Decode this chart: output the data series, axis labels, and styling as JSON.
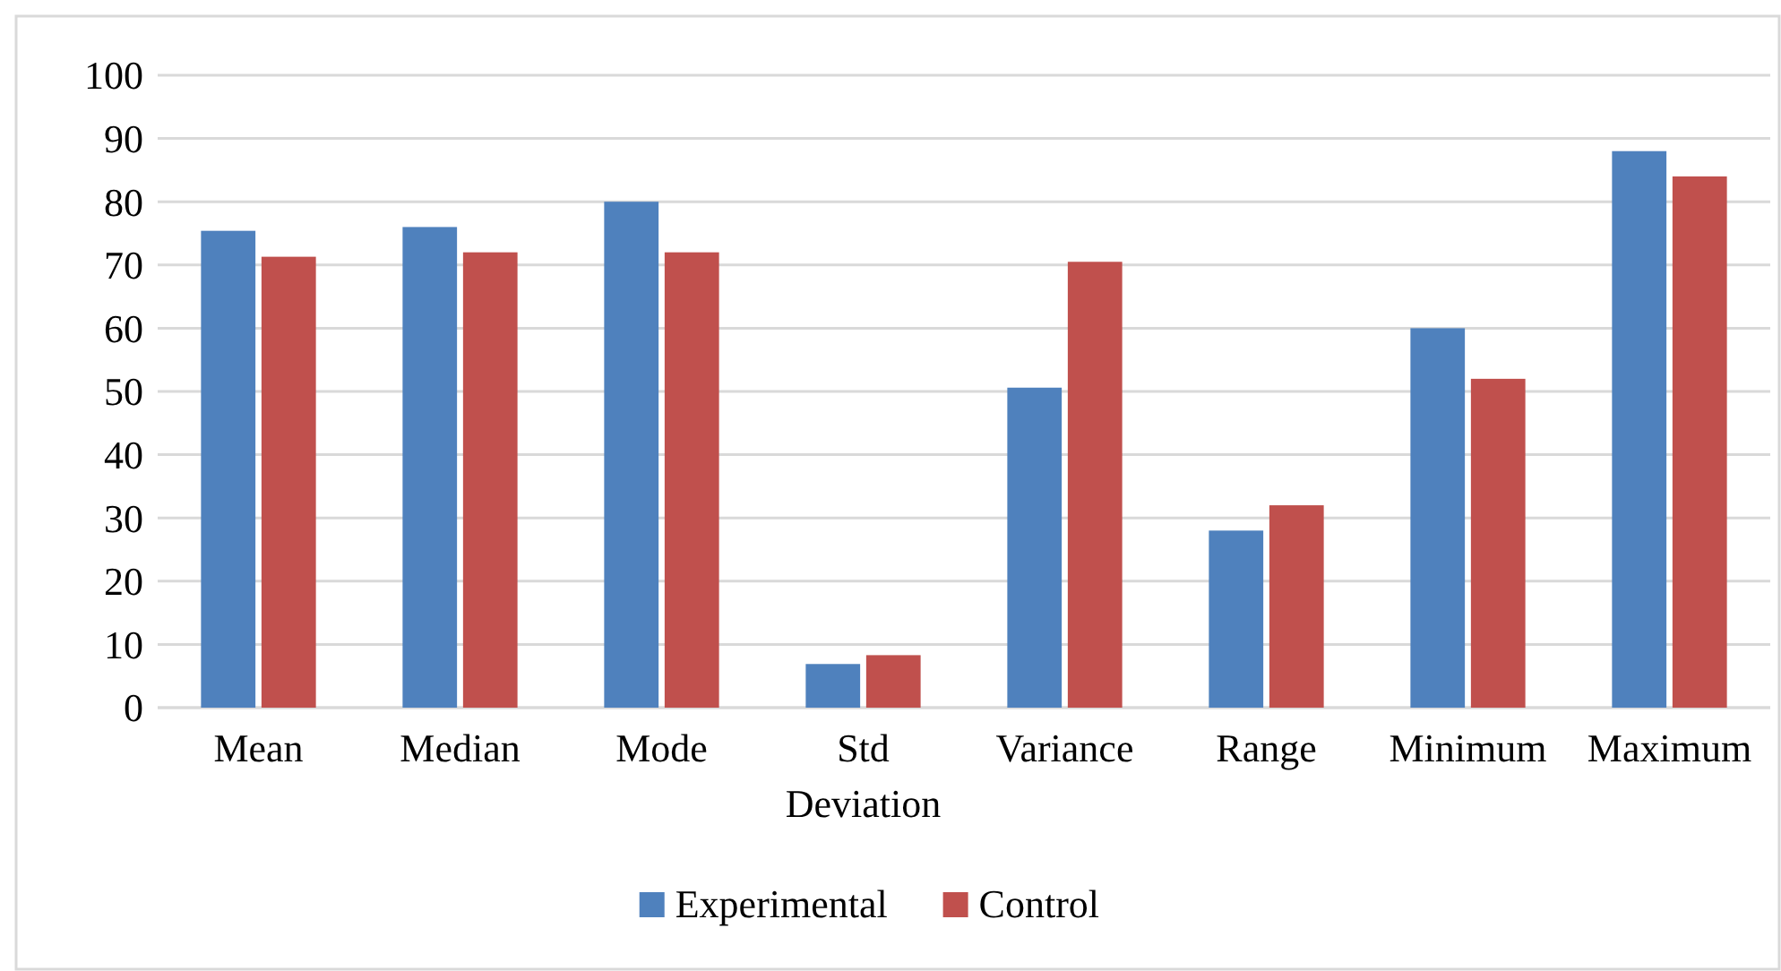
{
  "chart_data": {
    "type": "bar",
    "categories": [
      "Mean",
      "Median",
      "Mode",
      "Std Deviation",
      "Variance",
      "Range",
      "Minimum",
      "Maximum"
    ],
    "series": [
      {
        "name": "Experimental",
        "color": "#4f81bd",
        "values": [
          75.4,
          76,
          80,
          6.9,
          50.6,
          28,
          60,
          88
        ]
      },
      {
        "name": "Control",
        "color": "#c0504d",
        "values": [
          71.3,
          72,
          72,
          8.3,
          70.5,
          32,
          52,
          84
        ]
      }
    ],
    "ylim": [
      0,
      100
    ],
    "yticks": [
      0,
      10,
      20,
      30,
      40,
      50,
      60,
      70,
      80,
      90,
      100
    ],
    "grid": "y",
    "legend": "bottom"
  }
}
